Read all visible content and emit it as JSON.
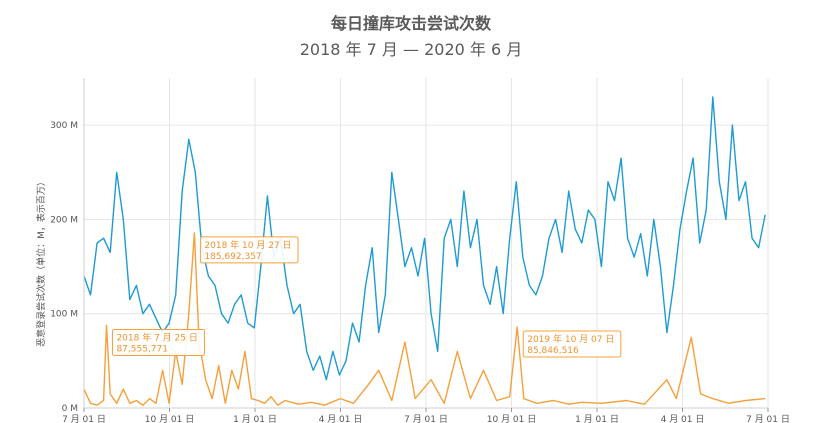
{
  "chart_data": {
    "type": "line",
    "title": "每日撞库攻击尝试次数",
    "subtitle": "2018 年 7 月 — 2020 年 6 月",
    "xlabel": "",
    "ylabel": "恶意登录尝试次数（单位：M，表示百万）",
    "x_range": [
      "2018-07-01",
      "2020-07-01"
    ],
    "ylim": [
      0,
      350
    ],
    "y_ticks": [
      {
        "v": 0,
        "label": "0 M"
      },
      {
        "v": 100,
        "label": "100 M"
      },
      {
        "v": 200,
        "label": "200 M"
      },
      {
        "v": 300,
        "label": "300 M"
      }
    ],
    "x_ticks": [
      "7 月 01 日",
      "10 月 01 日",
      "1 月 01 日",
      "4 月 01 日",
      "7 月 01 日",
      "10 月 01 日",
      "1 月 01 日",
      "4 月 01 日",
      "7 月 01 日"
    ],
    "grid": true,
    "legend": "none",
    "colors": {
      "blue": "#1f9bd1",
      "orange": "#f5a03a"
    },
    "series": [
      {
        "color": "#1f9bd1",
        "points": [
          [
            "2018-07-01",
            140
          ],
          [
            "2018-07-08",
            120
          ],
          [
            "2018-07-15",
            175
          ],
          [
            "2018-07-22",
            180
          ],
          [
            "2018-07-29",
            165
          ],
          [
            "2018-08-05",
            250
          ],
          [
            "2018-08-12",
            200
          ],
          [
            "2018-08-19",
            115
          ],
          [
            "2018-08-26",
            130
          ],
          [
            "2018-09-02",
            100
          ],
          [
            "2018-09-09",
            110
          ],
          [
            "2018-09-16",
            95
          ],
          [
            "2018-09-23",
            80
          ],
          [
            "2018-09-30",
            90
          ],
          [
            "2018-10-07",
            120
          ],
          [
            "2018-10-14",
            230
          ],
          [
            "2018-10-21",
            285
          ],
          [
            "2018-10-28",
            250
          ],
          [
            "2018-11-04",
            170
          ],
          [
            "2018-11-11",
            140
          ],
          [
            "2018-11-18",
            130
          ],
          [
            "2018-11-25",
            100
          ],
          [
            "2018-12-02",
            90
          ],
          [
            "2018-12-09",
            110
          ],
          [
            "2018-12-16",
            120
          ],
          [
            "2018-12-23",
            90
          ],
          [
            "2018-12-30",
            85
          ],
          [
            "2019-01-06",
            150
          ],
          [
            "2019-01-13",
            225
          ],
          [
            "2019-01-20",
            160
          ],
          [
            "2019-01-27",
            180
          ],
          [
            "2019-02-03",
            130
          ],
          [
            "2019-02-10",
            100
          ],
          [
            "2019-02-17",
            110
          ],
          [
            "2019-02-24",
            60
          ],
          [
            "2019-03-03",
            40
          ],
          [
            "2019-03-10",
            55
          ],
          [
            "2019-03-17",
            30
          ],
          [
            "2019-03-24",
            60
          ],
          [
            "2019-03-31",
            35
          ],
          [
            "2019-04-07",
            50
          ],
          [
            "2019-04-14",
            90
          ],
          [
            "2019-04-21",
            70
          ],
          [
            "2019-04-28",
            130
          ],
          [
            "2019-05-05",
            170
          ],
          [
            "2019-05-12",
            80
          ],
          [
            "2019-05-19",
            120
          ],
          [
            "2019-05-26",
            250
          ],
          [
            "2019-06-02",
            200
          ],
          [
            "2019-06-09",
            150
          ],
          [
            "2019-06-16",
            170
          ],
          [
            "2019-06-23",
            140
          ],
          [
            "2019-06-30",
            180
          ],
          [
            "2019-07-07",
            100
          ],
          [
            "2019-07-14",
            60
          ],
          [
            "2019-07-21",
            180
          ],
          [
            "2019-07-28",
            200
          ],
          [
            "2019-08-04",
            150
          ],
          [
            "2019-08-11",
            230
          ],
          [
            "2019-08-18",
            170
          ],
          [
            "2019-08-25",
            200
          ],
          [
            "2019-09-01",
            130
          ],
          [
            "2019-09-08",
            110
          ],
          [
            "2019-09-15",
            150
          ],
          [
            "2019-09-22",
            100
          ],
          [
            "2019-09-29",
            180
          ],
          [
            "2019-10-06",
            240
          ],
          [
            "2019-10-13",
            160
          ],
          [
            "2019-10-20",
            130
          ],
          [
            "2019-10-27",
            120
          ],
          [
            "2019-11-03",
            140
          ],
          [
            "2019-11-10",
            180
          ],
          [
            "2019-11-17",
            200
          ],
          [
            "2019-11-24",
            165
          ],
          [
            "2019-12-01",
            230
          ],
          [
            "2019-12-08",
            190
          ],
          [
            "2019-12-15",
            175
          ],
          [
            "2019-12-22",
            210
          ],
          [
            "2019-12-29",
            200
          ],
          [
            "2020-01-05",
            150
          ],
          [
            "2020-01-12",
            240
          ],
          [
            "2020-01-19",
            220
          ],
          [
            "2020-01-26",
            265
          ],
          [
            "2020-02-02",
            180
          ],
          [
            "2020-02-09",
            160
          ],
          [
            "2020-02-16",
            185
          ],
          [
            "2020-02-23",
            140
          ],
          [
            "2020-03-01",
            200
          ],
          [
            "2020-03-08",
            150
          ],
          [
            "2020-03-15",
            80
          ],
          [
            "2020-03-22",
            130
          ],
          [
            "2020-03-29",
            190
          ],
          [
            "2020-04-05",
            230
          ],
          [
            "2020-04-12",
            265
          ],
          [
            "2020-04-19",
            175
          ],
          [
            "2020-04-26",
            210
          ],
          [
            "2020-05-03",
            330
          ],
          [
            "2020-05-10",
            240
          ],
          [
            "2020-05-17",
            200
          ],
          [
            "2020-05-24",
            300
          ],
          [
            "2020-05-31",
            220
          ],
          [
            "2020-06-07",
            240
          ],
          [
            "2020-06-14",
            180
          ],
          [
            "2020-06-21",
            170
          ],
          [
            "2020-06-28",
            205
          ]
        ]
      },
      {
        "color": "#f5a03a",
        "points": [
          [
            "2018-07-01",
            20
          ],
          [
            "2018-07-08",
            5
          ],
          [
            "2018-07-15",
            3
          ],
          [
            "2018-07-22",
            8
          ],
          [
            "2018-07-25",
            87.56
          ],
          [
            "2018-07-29",
            15
          ],
          [
            "2018-08-05",
            5
          ],
          [
            "2018-08-12",
            20
          ],
          [
            "2018-08-19",
            5
          ],
          [
            "2018-08-26",
            8
          ],
          [
            "2018-09-02",
            3
          ],
          [
            "2018-09-09",
            10
          ],
          [
            "2018-09-16",
            5
          ],
          [
            "2018-09-23",
            40
          ],
          [
            "2018-09-30",
            5
          ],
          [
            "2018-10-07",
            60
          ],
          [
            "2018-10-14",
            25
          ],
          [
            "2018-10-21",
            100
          ],
          [
            "2018-10-27",
            185.69
          ],
          [
            "2018-11-01",
            70
          ],
          [
            "2018-11-08",
            30
          ],
          [
            "2018-11-15",
            10
          ],
          [
            "2018-11-22",
            45
          ],
          [
            "2018-11-29",
            5
          ],
          [
            "2018-12-06",
            40
          ],
          [
            "2018-12-13",
            20
          ],
          [
            "2018-12-20",
            60
          ],
          [
            "2018-12-27",
            10
          ],
          [
            "2019-01-03",
            8
          ],
          [
            "2019-01-10",
            5
          ],
          [
            "2019-01-17",
            12
          ],
          [
            "2019-01-24",
            3
          ],
          [
            "2019-02-01",
            8
          ],
          [
            "2019-02-15",
            4
          ],
          [
            "2019-03-01",
            6
          ],
          [
            "2019-03-15",
            3
          ],
          [
            "2019-04-01",
            10
          ],
          [
            "2019-04-15",
            5
          ],
          [
            "2019-05-01",
            25
          ],
          [
            "2019-05-12",
            40
          ],
          [
            "2019-05-26",
            8
          ],
          [
            "2019-06-09",
            70
          ],
          [
            "2019-06-20",
            10
          ],
          [
            "2019-07-07",
            30
          ],
          [
            "2019-07-21",
            5
          ],
          [
            "2019-08-04",
            60
          ],
          [
            "2019-08-18",
            10
          ],
          [
            "2019-09-01",
            40
          ],
          [
            "2019-09-15",
            8
          ],
          [
            "2019-09-29",
            12
          ],
          [
            "2019-10-07",
            85.85
          ],
          [
            "2019-10-14",
            10
          ],
          [
            "2019-10-28",
            5
          ],
          [
            "2019-11-15",
            8
          ],
          [
            "2019-12-01",
            4
          ],
          [
            "2019-12-15",
            6
          ],
          [
            "2020-01-05",
            5
          ],
          [
            "2020-02-01",
            8
          ],
          [
            "2020-02-20",
            4
          ],
          [
            "2020-03-15",
            30
          ],
          [
            "2020-03-25",
            10
          ],
          [
            "2020-04-10",
            75
          ],
          [
            "2020-04-20",
            15
          ],
          [
            "2020-05-03",
            10
          ],
          [
            "2020-05-20",
            5
          ],
          [
            "2020-06-07",
            8
          ],
          [
            "2020-06-28",
            10
          ]
        ]
      }
    ],
    "annotations": [
      {
        "date": "2018-07-25",
        "value": 87.56,
        "line1": "2018 年 7 月 25 日",
        "line2": "87,555,771"
      },
      {
        "date": "2018-10-27",
        "value": 185.69,
        "line1": "2018 年 10 月 27 日",
        "line2": "185,692,357"
      },
      {
        "date": "2019-10-07",
        "value": 85.85,
        "line1": "2019 年 10 月 07 日",
        "line2": "85,846,516"
      }
    ]
  }
}
